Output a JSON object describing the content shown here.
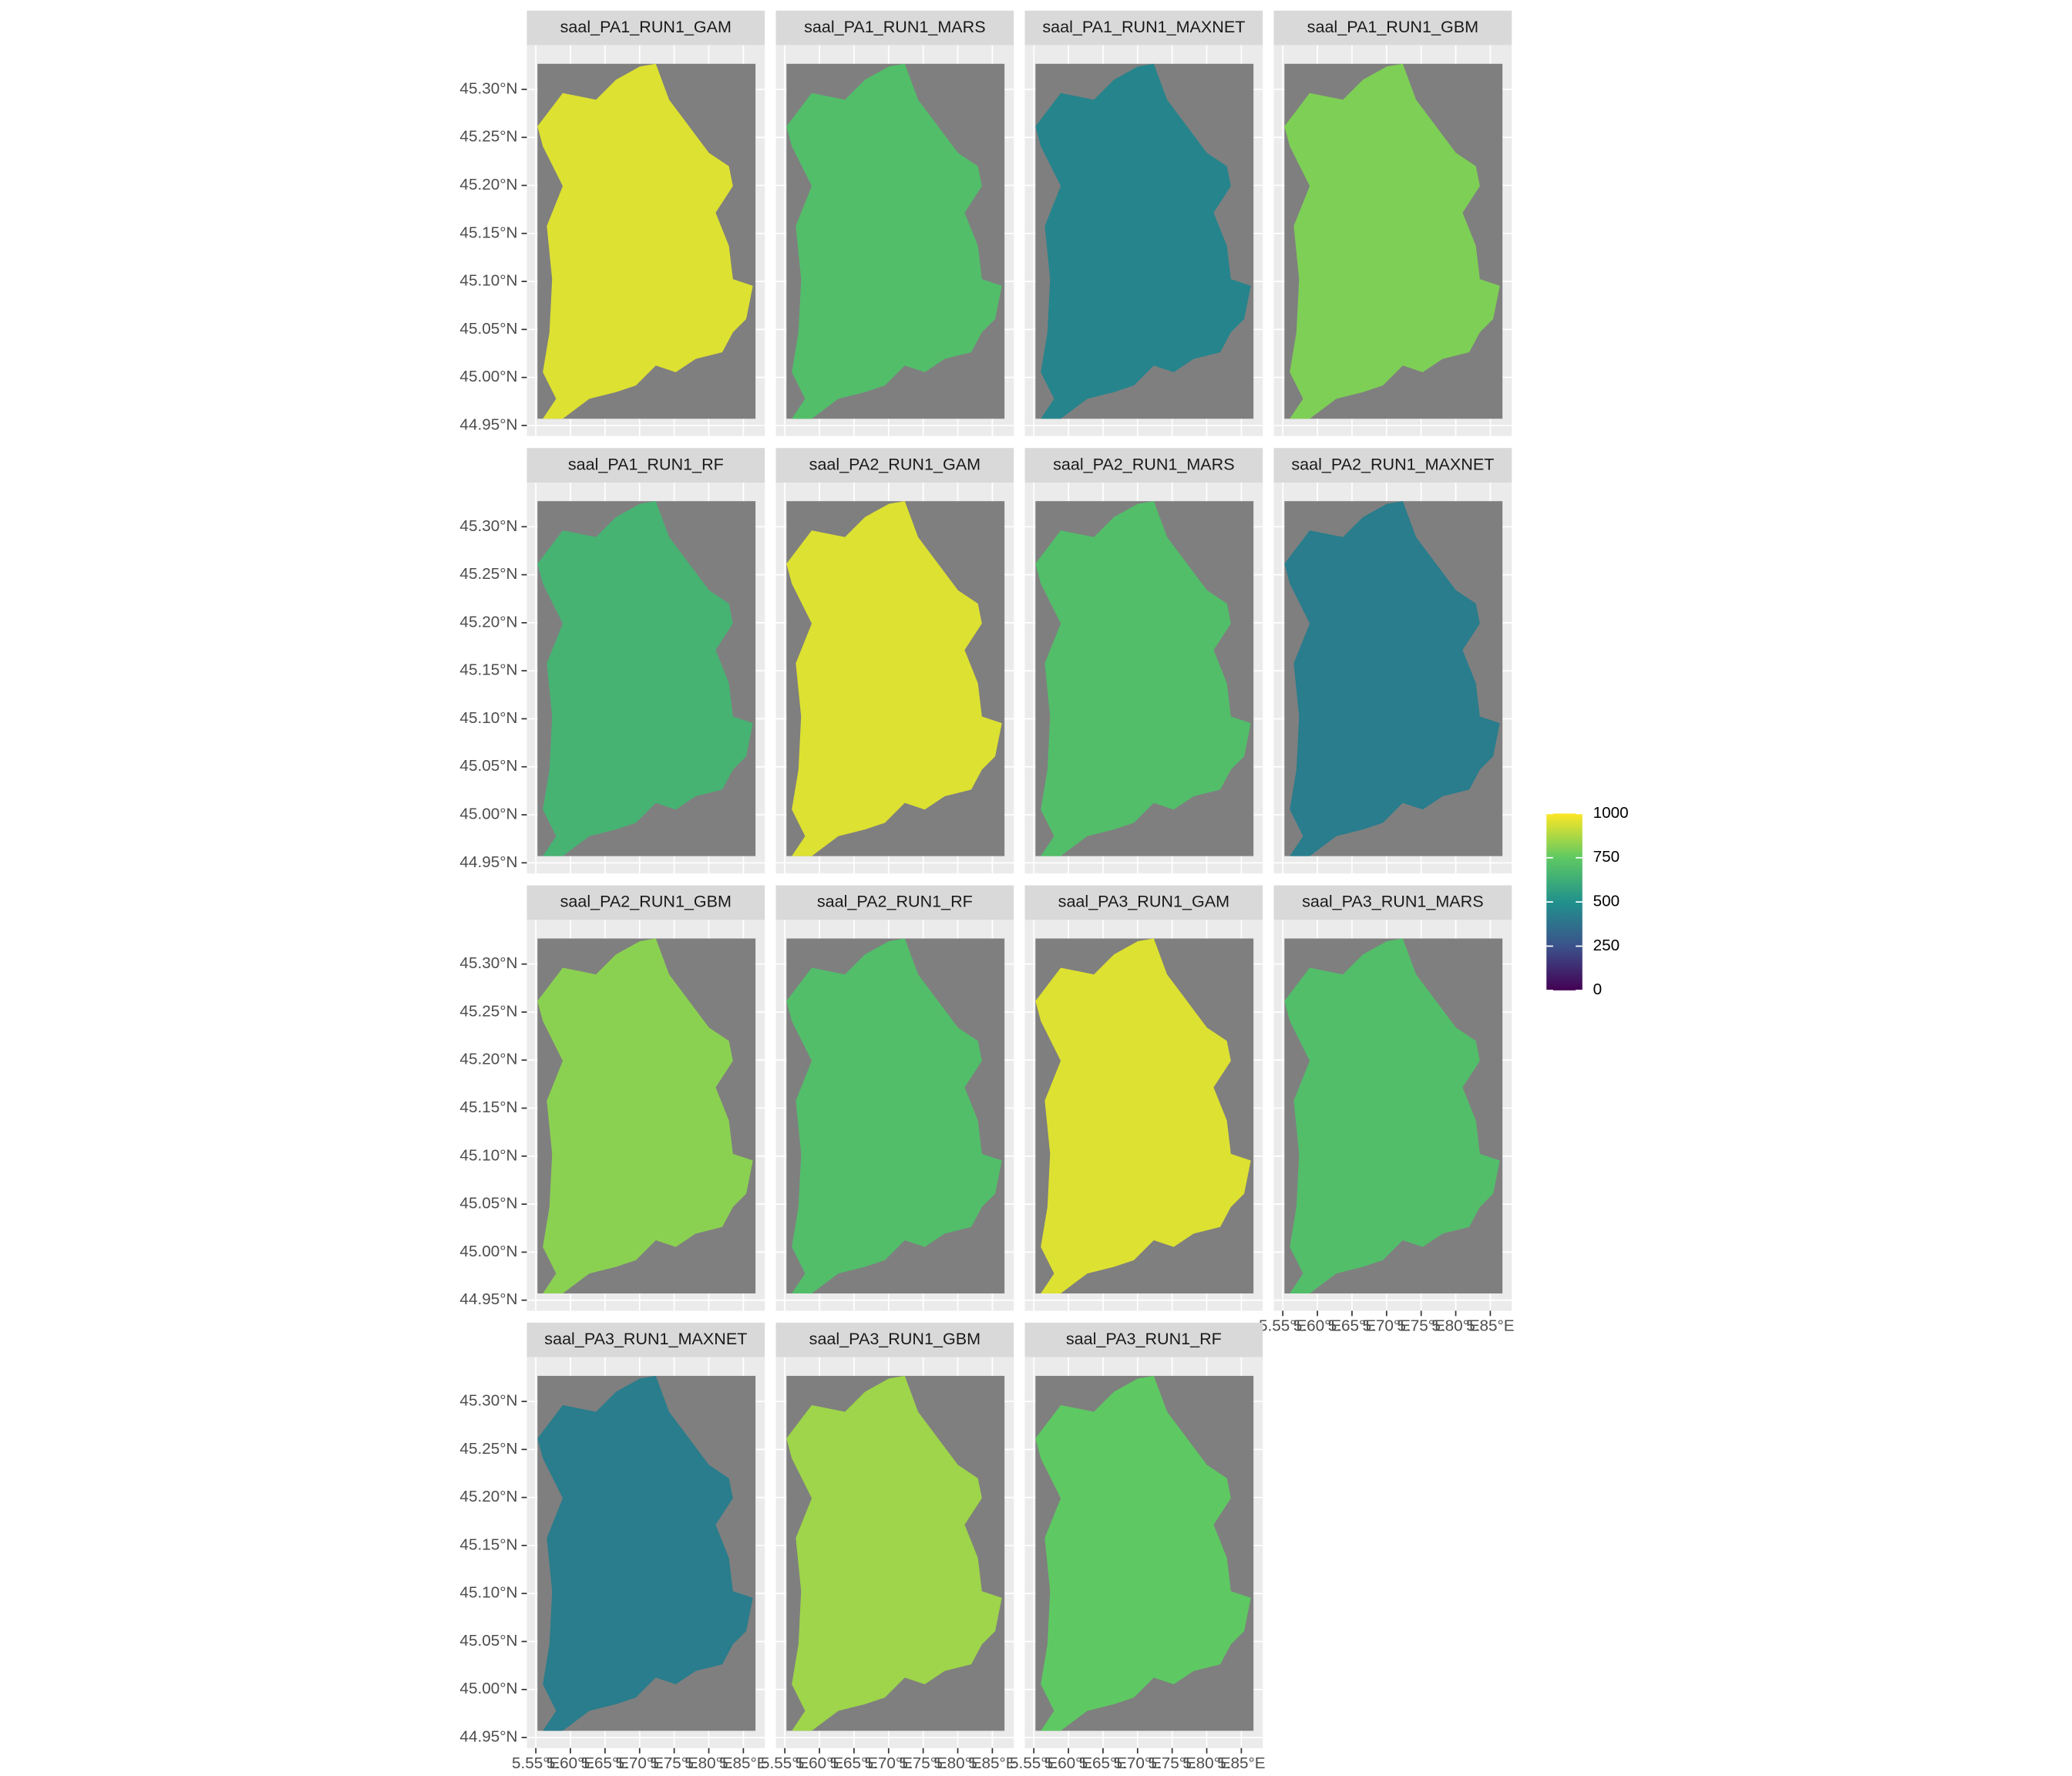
{
  "chart_data": {
    "type": "raster-facets",
    "panels": [
      {
        "title": "saal_PA1_RUN1_GAM",
        "value": 950
      },
      {
        "title": "saal_PA1_RUN1_MARS",
        "value": 700
      },
      {
        "title": "saal_PA1_RUN1_MAXNET",
        "value": 450
      },
      {
        "title": "saal_PA1_RUN1_GBM",
        "value": 800
      },
      {
        "title": "saal_PA1_RUN1_RF",
        "value": 650
      },
      {
        "title": "saal_PA2_RUN1_GAM",
        "value": 950
      },
      {
        "title": "saal_PA2_RUN1_MARS",
        "value": 700
      },
      {
        "title": "saal_PA2_RUN1_MAXNET",
        "value": 420
      },
      {
        "title": "saal_PA2_RUN1_GBM",
        "value": 820
      },
      {
        "title": "saal_PA2_RUN1_RF",
        "value": 700
      },
      {
        "title": "saal_PA3_RUN1_GAM",
        "value": 950
      },
      {
        "title": "saal_PA3_RUN1_MARS",
        "value": 700
      },
      {
        "title": "saal_PA3_RUN1_MAXNET",
        "value": 420
      },
      {
        "title": "saal_PA3_RUN1_GBM",
        "value": 850
      },
      {
        "title": "saal_PA3_RUN1_RF",
        "value": 750
      }
    ],
    "xlim": [
      5.537,
      5.881
    ],
    "xticks": [
      {
        "value": 5.55,
        "label": "5.55°E"
      },
      {
        "value": 5.6,
        "label": "5.60°E"
      },
      {
        "value": 5.65,
        "label": "5.65°E"
      },
      {
        "value": 5.7,
        "label": "5.70°E"
      },
      {
        "value": 5.75,
        "label": "5.75°E"
      },
      {
        "value": 5.8,
        "label": "5.80°E"
      },
      {
        "value": 5.85,
        "label": "5.85°E"
      }
    ],
    "ylim": [
      44.939,
      45.346
    ],
    "yticks": [
      {
        "value": 44.95,
        "label": "44.95°N"
      },
      {
        "value": 45.0,
        "label": "45.00°N"
      },
      {
        "value": 45.05,
        "label": "45.05°N"
      },
      {
        "value": 45.1,
        "label": "45.10°N"
      },
      {
        "value": 45.15,
        "label": "45.15°N"
      },
      {
        "value": 45.2,
        "label": "45.20°N"
      },
      {
        "value": 45.25,
        "label": "45.25°N"
      },
      {
        "value": 45.3,
        "label": "45.30°N"
      }
    ],
    "colorbar": {
      "lim": [
        0,
        1000
      ],
      "ticks": [
        0,
        250,
        500,
        750,
        1000
      ]
    },
    "ncol": 4
  }
}
